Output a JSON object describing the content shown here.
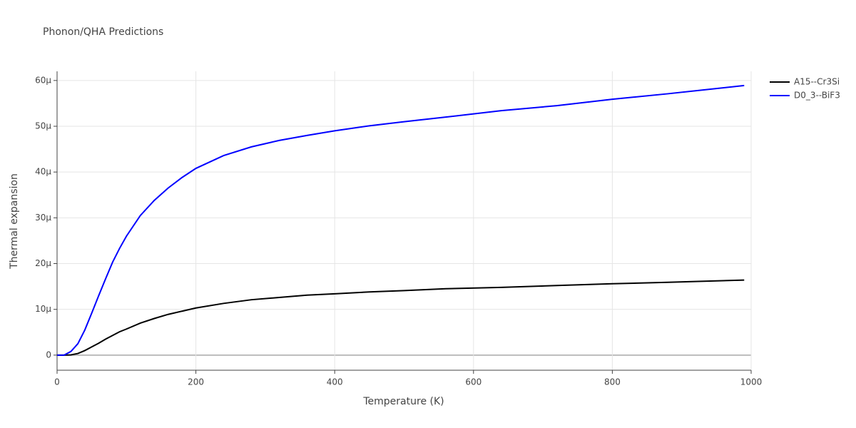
{
  "chart_data": {
    "type": "line",
    "title": "Phonon/QHA Predictions",
    "x_label": "Temperature (K)",
    "y_label": "Thermal expansion",
    "x": [
      0,
      10,
      20,
      30,
      40,
      50,
      60,
      70,
      80,
      90,
      100,
      120,
      140,
      160,
      180,
      200,
      240,
      280,
      320,
      360,
      400,
      450,
      500,
      560,
      640,
      720,
      800,
      880,
      990
    ],
    "series": [
      {
        "name": "A15--Cr3Si",
        "color": "#000000",
        "values": [
          0,
          0,
          5e-08,
          3.5e-07,
          1e-06,
          1.8e-06,
          2.6e-06,
          3.5e-06,
          4.3e-06,
          5.1e-06,
          5.7e-06,
          7e-06,
          8e-06,
          8.9e-06,
          9.6e-06,
          1.03e-05,
          1.13e-05,
          1.21e-05,
          1.26e-05,
          1.31e-05,
          1.34e-05,
          1.38e-05,
          1.41e-05,
          1.45e-05,
          1.48e-05,
          1.52e-05,
          1.56e-05,
          1.59e-05,
          1.64e-05
        ]
      },
      {
        "name": "D0_3--BiF3",
        "color": "#0000ff",
        "values": [
          0,
          0,
          8e-07,
          2.5e-06,
          5.5e-06,
          9.2e-06,
          1.3e-05,
          1.67e-05,
          2.03e-05,
          2.33e-05,
          2.6e-05,
          3.05e-05,
          3.38e-05,
          3.65e-05,
          3.88e-05,
          4.08e-05,
          4.36e-05,
          4.55e-05,
          4.69e-05,
          4.8e-05,
          4.9e-05,
          5.01e-05,
          5.1e-05,
          5.2e-05,
          5.34e-05,
          5.45e-05,
          5.59e-05,
          5.71e-05,
          5.89e-05
        ]
      }
    ],
    "xlim": [
      0,
      1000
    ],
    "xticks": [
      0,
      200,
      400,
      600,
      800,
      1000
    ],
    "ylim": [
      -3.3e-06,
      6.2e-05
    ],
    "yticks": [
      0,
      {
        "value": 1e-05,
        "label": "10μ"
      },
      {
        "value": 2e-05,
        "label": "20μ"
      },
      {
        "value": 3e-05,
        "label": "30μ"
      },
      {
        "value": 4e-05,
        "label": "40μ"
      },
      {
        "value": 5e-05,
        "label": "50μ"
      },
      {
        "value": 6e-05,
        "label": "60μ"
      }
    ],
    "grid": true,
    "legend": "right"
  }
}
